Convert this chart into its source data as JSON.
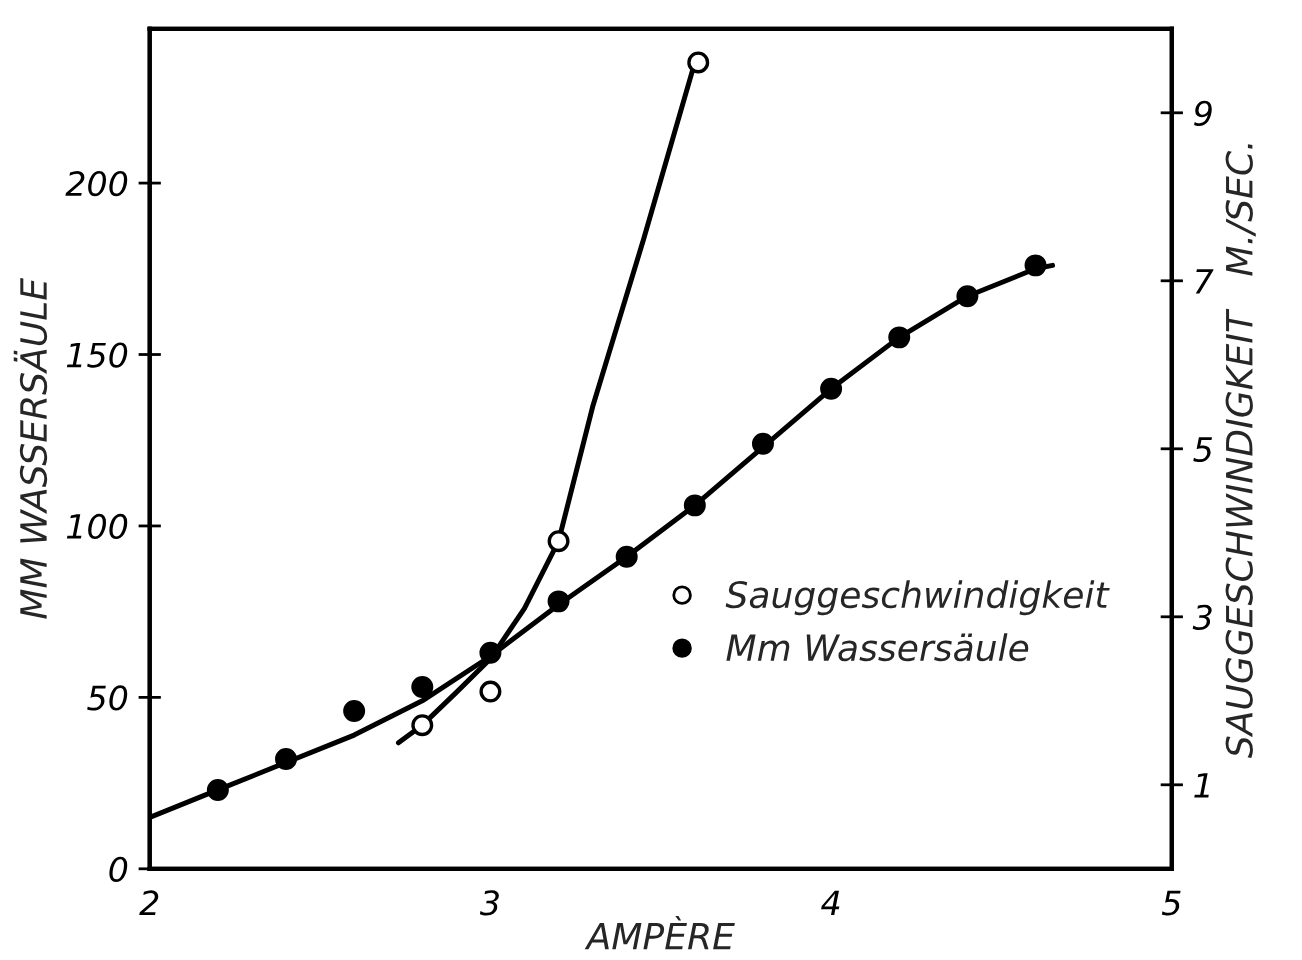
{
  "chart_data": {
    "type": "line",
    "xlabel": "AMPÈRE",
    "ylabel": "MM WASSERSÄULE",
    "y2label": "SAUGGESCHWINDIGKEIT   M./SEC.",
    "xlim": [
      2,
      5
    ],
    "xticks": [
      2,
      3,
      4,
      5
    ],
    "ylim": [
      0,
      245
    ],
    "yticks": [
      0,
      50,
      100,
      150,
      200
    ],
    "y2lim": [
      0,
      10
    ],
    "y2ticks": [
      1,
      3,
      5,
      7,
      9
    ],
    "grid": false,
    "legend": "lower right",
    "series": [
      {
        "marker": "none",
        "color": "#000000",
        "x": [
          2.0,
          2.2,
          2.4,
          2.6,
          2.8,
          3.0,
          3.2,
          3.4,
          3.6,
          3.8,
          4.0,
          4.2,
          4.4,
          4.6,
          4.65
        ],
        "values": [
          15,
          23,
          31,
          39,
          49,
          62,
          77,
          91,
          106,
          123,
          140,
          155,
          167,
          175,
          176
        ]
      },
      {
        "marker": "none",
        "axis": "y2",
        "color": "#000000",
        "x": [
          2.73,
          2.8,
          2.9,
          3.0,
          3.1,
          3.2,
          3.3,
          3.45,
          3.6
        ],
        "values": [
          1.5,
          1.71,
          2.1,
          2.5,
          3.1,
          3.9,
          5.5,
          7.5,
          9.6
        ]
      },
      {
        "type": "scatter",
        "marker": "circle",
        "axis": "y2",
        "name": "Sauggeschwindigkeit",
        "color": "#ffffff",
        "x": [
          2.8,
          3.0,
          3.2,
          3.61
        ],
        "values": [
          1.71,
          2.11,
          3.9,
          9.6
        ]
      },
      {
        "type": "scatter",
        "marker": "circle",
        "name": "Mm Wassersäule",
        "color": "#000000",
        "x": [
          2.2,
          2.4,
          2.6,
          2.8,
          3.0,
          3.2,
          3.4,
          3.6,
          3.8,
          4.0,
          4.2,
          4.4,
          4.6
        ],
        "values": [
          23,
          32,
          46,
          53,
          63,
          78,
          91,
          106,
          124,
          140,
          155,
          167,
          176
        ]
      }
    ]
  }
}
